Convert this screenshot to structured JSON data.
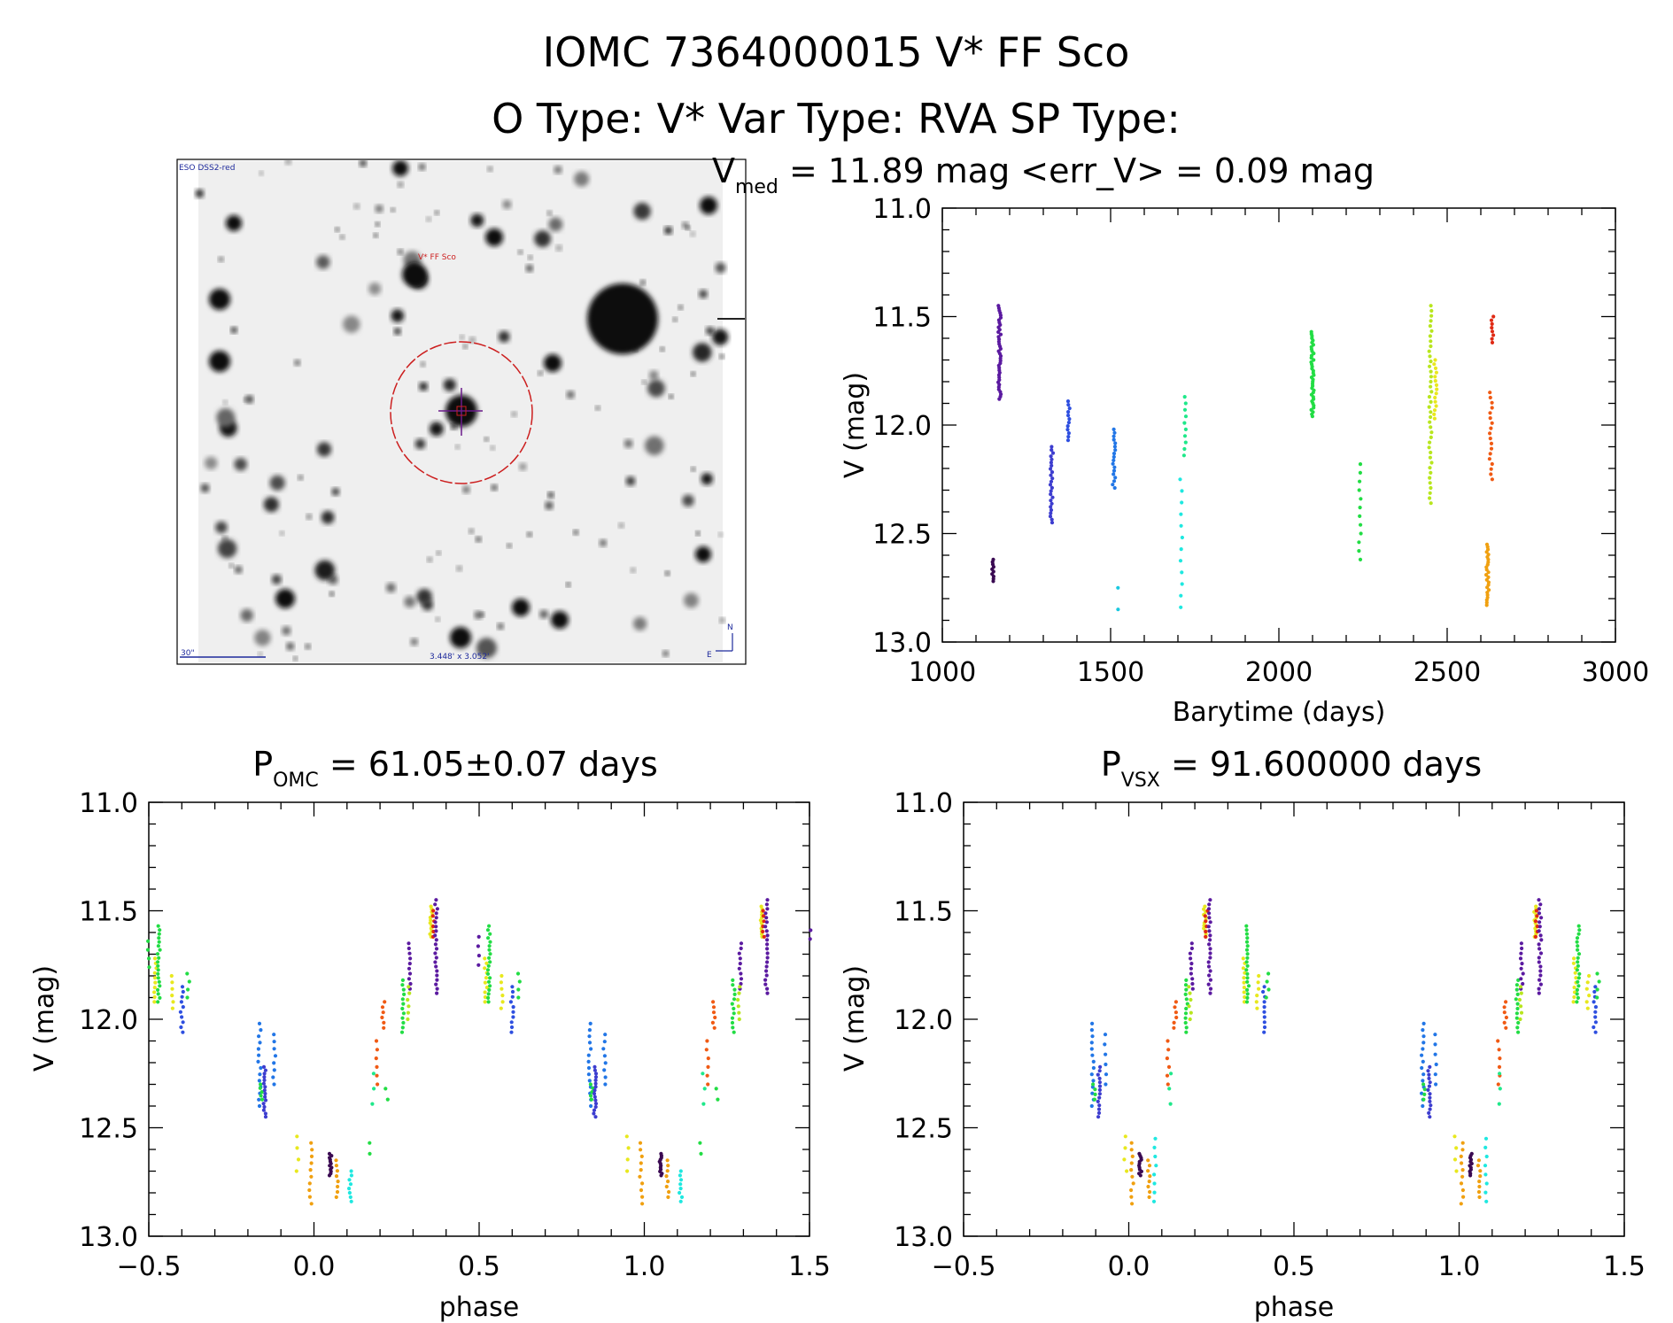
{
  "header": {
    "title": "IOMC 7364000015   V* FF Sco",
    "subtitle": "O Type: V*  Var Type: RVA  SP Type:"
  },
  "image_panel": {
    "corner_label": "ESO DSS2-red",
    "star_label": "V* FF Sco",
    "scale_label": "30\"",
    "fov_label": "3.448' x 3.052'",
    "north_label": "N",
    "east_label": "E"
  },
  "colors": {
    "c1150": "#3a0a52",
    "c1170": "#5b1aa0",
    "c1325": "#3d3dcf",
    "c1375": "#2e4fe0",
    "c1510": "#2276e6",
    "c1520": "#19c8e0",
    "c1710": "#1fe8e0",
    "c1720": "#1fe88a",
    "c2100": "#22dd44",
    "c2240": "#22dd44",
    "c2450": "#b8e61e",
    "c2465": "#e8e81e",
    "c2620a": "#f0a010",
    "c2620b": "#f05a14",
    "c2635": "#e02a14",
    "mag_circle": "#cc1e1e",
    "crosshair": "#6a1a8a",
    "axis": "#000000"
  },
  "chart_data": [
    {
      "type": "scatter",
      "name": "lightcurve",
      "title": "V_med = 11.89 mag <err_V> = 0.09 mag",
      "title_main": "V",
      "title_sub": "med",
      "title_rest": " = 11.89 mag <err_V> = 0.09 mag",
      "xlabel": "Barytime (days)",
      "ylabel": "V (mag)",
      "xlim": [
        1000,
        3000
      ],
      "ylim": [
        13.0,
        11.0
      ],
      "xticks": [
        "1000",
        "1500",
        "2000",
        "2500",
        "3000"
      ],
      "yticks": [
        "11.0",
        "11.5",
        "12.0",
        "12.5",
        "13.0"
      ],
      "groups": [
        {
          "x": 1150,
          "y_min": 12.62,
          "y_max": 12.72,
          "n": 10,
          "color": "c1150"
        },
        {
          "x": 1170,
          "y_min": 11.45,
          "y_max": 11.88,
          "n": 40,
          "color": "c1170"
        },
        {
          "x": 1325,
          "y_min": 12.1,
          "y_max": 12.45,
          "n": 25,
          "color": "c1325"
        },
        {
          "x": 1375,
          "y_min": 11.89,
          "y_max": 12.07,
          "n": 12,
          "color": "c1375"
        },
        {
          "x": 1510,
          "y_min": 12.02,
          "y_max": 12.29,
          "n": 18,
          "color": "c1510"
        },
        {
          "x": 1520,
          "y_min": 12.75,
          "y_max": 12.85,
          "n": 2,
          "color": "c1520"
        },
        {
          "x": 1710,
          "y_min": 12.25,
          "y_max": 12.84,
          "n": 12,
          "color": "c1710"
        },
        {
          "x": 1720,
          "y_min": 11.87,
          "y_max": 12.14,
          "n": 10,
          "color": "c1720"
        },
        {
          "x": 2100,
          "y_min": 11.57,
          "y_max": 11.96,
          "n": 40,
          "color": "c2100"
        },
        {
          "x": 2240,
          "y_min": 12.18,
          "y_max": 12.62,
          "n": 12,
          "color": "c2240"
        },
        {
          "x": 2450,
          "y_min": 11.45,
          "y_max": 12.36,
          "n": 40,
          "color": "c2450"
        },
        {
          "x": 2465,
          "y_min": 11.7,
          "y_max": 11.97,
          "n": 15,
          "color": "c2465"
        },
        {
          "x": 2620,
          "y_min": 12.55,
          "y_max": 12.83,
          "n": 25,
          "color": "c2620a"
        },
        {
          "x": 2630,
          "y_min": 11.85,
          "y_max": 12.25,
          "n": 18,
          "color": "c2620b"
        },
        {
          "x": 2635,
          "y_min": 11.5,
          "y_max": 11.62,
          "n": 8,
          "color": "c2635"
        }
      ]
    },
    {
      "type": "scatter",
      "name": "phase-omc",
      "title": "P_OMC = 61.05±0.07 days",
      "title_main": "P",
      "title_sub": "OMC",
      "title_rest": " = 61.05±0.07 days",
      "xlabel": "phase",
      "ylabel": "V (mag)",
      "xlim": [
        -0.5,
        1.5
      ],
      "ylim": [
        13.0,
        11.0
      ],
      "xticks": [
        "−0.5",
        "0.0",
        "0.5",
        "1.0",
        "1.5"
      ],
      "yticks": [
        "11.0",
        "11.5",
        "12.0",
        "12.5",
        "13.0"
      ],
      "groups": [
        {
          "x": -0.5,
          "y_min": 11.64,
          "y_max": 11.76,
          "n": 4,
          "color": "c2100"
        },
        {
          "x": -0.48,
          "y_min": 11.72,
          "y_max": 11.92,
          "n": 10,
          "color": "c2465"
        },
        {
          "x": -0.47,
          "y_min": 11.57,
          "y_max": 11.92,
          "n": 20,
          "color": "c2100"
        },
        {
          "x": -0.43,
          "y_min": 11.8,
          "y_max": 11.95,
          "n": 6,
          "color": "c2465"
        },
        {
          "x": -0.4,
          "y_min": 11.85,
          "y_max": 12.06,
          "n": 10,
          "color": "c1375"
        },
        {
          "x": -0.38,
          "y_min": 11.79,
          "y_max": 11.9,
          "n": 4,
          "color": "c2100"
        },
        {
          "x": -0.165,
          "y_min": 12.02,
          "y_max": 12.4,
          "n": 14,
          "color": "c1510"
        },
        {
          "x": -0.16,
          "y_min": 12.3,
          "y_max": 12.37,
          "n": 5,
          "color": "c2240"
        },
        {
          "x": -0.15,
          "y_min": 12.22,
          "y_max": 12.45,
          "n": 16,
          "color": "c1325"
        },
        {
          "x": -0.12,
          "y_min": 12.07,
          "y_max": 12.3,
          "n": 8,
          "color": "c1510"
        },
        {
          "x": -0.05,
          "y_min": 12.54,
          "y_max": 12.7,
          "n": 4,
          "color": "c2465"
        },
        {
          "x": -0.01,
          "y_min": 12.57,
          "y_max": 12.85,
          "n": 10,
          "color": "c2620a"
        },
        {
          "x": 0.05,
          "y_min": 12.62,
          "y_max": 12.72,
          "n": 12,
          "color": "c1150"
        },
        {
          "x": 0.07,
          "y_min": 12.65,
          "y_max": 12.82,
          "n": 8,
          "color": "c2620a"
        },
        {
          "x": 0.11,
          "y_min": 12.7,
          "y_max": 12.84,
          "n": 8,
          "color": "c1710"
        },
        {
          "x": 0.17,
          "y_min": 12.57,
          "y_max": 12.62,
          "n": 2,
          "color": "c2240"
        },
        {
          "x": 0.19,
          "y_min": 12.1,
          "y_max": 12.3,
          "n": 6,
          "color": "c2620b"
        },
        {
          "x": 0.18,
          "y_min": 12.25,
          "y_max": 12.39,
          "n": 3,
          "color": "c1720"
        },
        {
          "x": 0.21,
          "y_min": 11.92,
          "y_max": 12.04,
          "n": 6,
          "color": "c2620b"
        },
        {
          "x": 0.22,
          "y_min": 12.32,
          "y_max": 12.37,
          "n": 2,
          "color": "c2240"
        },
        {
          "x": 0.27,
          "y_min": 11.82,
          "y_max": 12.06,
          "n": 12,
          "color": "c2100"
        },
        {
          "x": 0.29,
          "y_min": 11.65,
          "y_max": 11.86,
          "n": 10,
          "color": "c1170"
        },
        {
          "x": 0.285,
          "y_min": 11.85,
          "y_max": 12.0,
          "n": 6,
          "color": "c2450"
        },
        {
          "x": 0.355,
          "y_min": 11.48,
          "y_max": 11.62,
          "n": 12,
          "color": "c2465"
        },
        {
          "x": 0.36,
          "y_min": 11.5,
          "y_max": 11.62,
          "n": 6,
          "color": "c2635"
        },
        {
          "x": 0.37,
          "y_min": 11.45,
          "y_max": 11.88,
          "n": 22,
          "color": "c1170"
        },
        {
          "x": 0.5,
          "y_min": 11.62,
          "y_max": 11.75,
          "n": 4,
          "color": "c1170"
        },
        {
          "x": 0.52,
          "y_min": 11.72,
          "y_max": 11.92,
          "n": 10,
          "color": "c2465"
        },
        {
          "x": 0.53,
          "y_min": 11.57,
          "y_max": 11.92,
          "n": 20,
          "color": "c2100"
        },
        {
          "x": 0.57,
          "y_min": 11.8,
          "y_max": 11.95,
          "n": 6,
          "color": "c2465"
        },
        {
          "x": 0.6,
          "y_min": 11.85,
          "y_max": 12.06,
          "n": 10,
          "color": "c1375"
        },
        {
          "x": 0.62,
          "y_min": 11.79,
          "y_max": 11.9,
          "n": 4,
          "color": "c2100"
        },
        {
          "x": 0.835,
          "y_min": 12.02,
          "y_max": 12.4,
          "n": 14,
          "color": "c1510"
        },
        {
          "x": 0.84,
          "y_min": 12.3,
          "y_max": 12.37,
          "n": 5,
          "color": "c2240"
        },
        {
          "x": 0.85,
          "y_min": 12.22,
          "y_max": 12.45,
          "n": 16,
          "color": "c1325"
        },
        {
          "x": 0.88,
          "y_min": 12.07,
          "y_max": 12.3,
          "n": 8,
          "color": "c1510"
        },
        {
          "x": 0.95,
          "y_min": 12.54,
          "y_max": 12.7,
          "n": 4,
          "color": "c2465"
        },
        {
          "x": 0.99,
          "y_min": 12.57,
          "y_max": 12.85,
          "n": 10,
          "color": "c2620a"
        },
        {
          "x": 1.05,
          "y_min": 12.62,
          "y_max": 12.72,
          "n": 12,
          "color": "c1150"
        },
        {
          "x": 1.07,
          "y_min": 12.65,
          "y_max": 12.82,
          "n": 8,
          "color": "c2620a"
        },
        {
          "x": 1.11,
          "y_min": 12.7,
          "y_max": 12.84,
          "n": 8,
          "color": "c1710"
        },
        {
          "x": 1.17,
          "y_min": 12.57,
          "y_max": 12.62,
          "n": 2,
          "color": "c2240"
        },
        {
          "x": 1.19,
          "y_min": 12.1,
          "y_max": 12.3,
          "n": 6,
          "color": "c2620b"
        },
        {
          "x": 1.18,
          "y_min": 12.25,
          "y_max": 12.39,
          "n": 3,
          "color": "c1720"
        },
        {
          "x": 1.21,
          "y_min": 11.92,
          "y_max": 12.04,
          "n": 6,
          "color": "c2620b"
        },
        {
          "x": 1.22,
          "y_min": 12.32,
          "y_max": 12.37,
          "n": 2,
          "color": "c2240"
        },
        {
          "x": 1.27,
          "y_min": 11.82,
          "y_max": 12.06,
          "n": 12,
          "color": "c2100"
        },
        {
          "x": 1.29,
          "y_min": 11.65,
          "y_max": 11.86,
          "n": 10,
          "color": "c1170"
        },
        {
          "x": 1.285,
          "y_min": 11.85,
          "y_max": 12.0,
          "n": 6,
          "color": "c2450"
        },
        {
          "x": 1.355,
          "y_min": 11.48,
          "y_max": 11.62,
          "n": 12,
          "color": "c2465"
        },
        {
          "x": 1.36,
          "y_min": 11.5,
          "y_max": 11.62,
          "n": 6,
          "color": "c2635"
        },
        {
          "x": 1.37,
          "y_min": 11.45,
          "y_max": 11.88,
          "n": 22,
          "color": "c1170"
        },
        {
          "x": 1.5,
          "y_min": 11.59,
          "y_max": 11.63,
          "n": 2,
          "color": "c1170"
        }
      ]
    },
    {
      "type": "scatter",
      "name": "phase-vsx",
      "title": "P_VSX = 91.600000 days",
      "title_main": "P",
      "title_sub": "VSX",
      "title_rest": " = 91.600000 days",
      "xlabel": "phase",
      "ylabel": "V (mag)",
      "xlim": [
        -0.5,
        1.5
      ],
      "ylim": [
        13.0,
        11.0
      ],
      "xticks": [
        "−0.5",
        "0.0",
        "0.5",
        "1.0",
        "1.5"
      ],
      "yticks": [
        "11.0",
        "11.5",
        "12.0",
        "12.5",
        "13.0"
      ],
      "groups": [
        {
          "x": -0.11,
          "y_min": 12.02,
          "y_max": 12.4,
          "n": 14,
          "color": "c1510"
        },
        {
          "x": -0.105,
          "y_min": 12.3,
          "y_max": 12.37,
          "n": 4,
          "color": "c2240"
        },
        {
          "x": -0.09,
          "y_min": 12.22,
          "y_max": 12.45,
          "n": 14,
          "color": "c1325"
        },
        {
          "x": -0.07,
          "y_min": 12.07,
          "y_max": 12.3,
          "n": 6,
          "color": "c1510"
        },
        {
          "x": -0.01,
          "y_min": 12.54,
          "y_max": 12.7,
          "n": 4,
          "color": "c2465"
        },
        {
          "x": 0.01,
          "y_min": 12.57,
          "y_max": 12.85,
          "n": 10,
          "color": "c2620a"
        },
        {
          "x": 0.035,
          "y_min": 12.62,
          "y_max": 12.72,
          "n": 12,
          "color": "c1150"
        },
        {
          "x": 0.06,
          "y_min": 12.65,
          "y_max": 12.82,
          "n": 8,
          "color": "c2620a"
        },
        {
          "x": 0.08,
          "y_min": 12.55,
          "y_max": 12.84,
          "n": 8,
          "color": "c1710"
        },
        {
          "x": 0.12,
          "y_min": 12.1,
          "y_max": 12.3,
          "n": 6,
          "color": "c2620b"
        },
        {
          "x": 0.125,
          "y_min": 12.25,
          "y_max": 12.39,
          "n": 3,
          "color": "c1720"
        },
        {
          "x": 0.14,
          "y_min": 11.92,
          "y_max": 12.04,
          "n": 6,
          "color": "c2620b"
        },
        {
          "x": 0.175,
          "y_min": 11.82,
          "y_max": 12.06,
          "n": 12,
          "color": "c2100"
        },
        {
          "x": 0.19,
          "y_min": 11.65,
          "y_max": 11.86,
          "n": 10,
          "color": "c1170"
        },
        {
          "x": 0.185,
          "y_min": 11.85,
          "y_max": 12.0,
          "n": 6,
          "color": "c2450"
        },
        {
          "x": 0.23,
          "y_min": 11.48,
          "y_max": 11.62,
          "n": 12,
          "color": "c2465"
        },
        {
          "x": 0.235,
          "y_min": 11.5,
          "y_max": 11.62,
          "n": 6,
          "color": "c2635"
        },
        {
          "x": 0.245,
          "y_min": 11.45,
          "y_max": 11.88,
          "n": 22,
          "color": "c1170"
        },
        {
          "x": 0.35,
          "y_min": 11.72,
          "y_max": 11.92,
          "n": 10,
          "color": "c2465"
        },
        {
          "x": 0.36,
          "y_min": 11.57,
          "y_max": 11.92,
          "n": 20,
          "color": "c2100"
        },
        {
          "x": 0.39,
          "y_min": 11.8,
          "y_max": 11.95,
          "n": 6,
          "color": "c2465"
        },
        {
          "x": 0.41,
          "y_min": 11.85,
          "y_max": 12.06,
          "n": 10,
          "color": "c1375"
        },
        {
          "x": 0.42,
          "y_min": 11.79,
          "y_max": 11.9,
          "n": 4,
          "color": "c2100"
        },
        {
          "x": 0.89,
          "y_min": 12.02,
          "y_max": 12.4,
          "n": 14,
          "color": "c1510"
        },
        {
          "x": 0.895,
          "y_min": 12.3,
          "y_max": 12.37,
          "n": 4,
          "color": "c2240"
        },
        {
          "x": 0.91,
          "y_min": 12.22,
          "y_max": 12.45,
          "n": 14,
          "color": "c1325"
        },
        {
          "x": 0.93,
          "y_min": 12.07,
          "y_max": 12.3,
          "n": 6,
          "color": "c1510"
        },
        {
          "x": 0.99,
          "y_min": 12.54,
          "y_max": 12.7,
          "n": 4,
          "color": "c2465"
        },
        {
          "x": 1.01,
          "y_min": 12.57,
          "y_max": 12.85,
          "n": 10,
          "color": "c2620a"
        },
        {
          "x": 1.035,
          "y_min": 12.62,
          "y_max": 12.72,
          "n": 12,
          "color": "c1150"
        },
        {
          "x": 1.06,
          "y_min": 12.65,
          "y_max": 12.82,
          "n": 8,
          "color": "c2620a"
        },
        {
          "x": 1.08,
          "y_min": 12.55,
          "y_max": 12.84,
          "n": 8,
          "color": "c1710"
        },
        {
          "x": 1.12,
          "y_min": 12.1,
          "y_max": 12.3,
          "n": 6,
          "color": "c2620b"
        },
        {
          "x": 1.125,
          "y_min": 12.25,
          "y_max": 12.39,
          "n": 3,
          "color": "c1720"
        },
        {
          "x": 1.14,
          "y_min": 11.92,
          "y_max": 12.04,
          "n": 6,
          "color": "c2620b"
        },
        {
          "x": 1.175,
          "y_min": 11.82,
          "y_max": 12.06,
          "n": 12,
          "color": "c2100"
        },
        {
          "x": 1.19,
          "y_min": 11.65,
          "y_max": 11.86,
          "n": 10,
          "color": "c1170"
        },
        {
          "x": 1.185,
          "y_min": 11.85,
          "y_max": 12.0,
          "n": 6,
          "color": "c2450"
        },
        {
          "x": 1.23,
          "y_min": 11.48,
          "y_max": 11.62,
          "n": 12,
          "color": "c2465"
        },
        {
          "x": 1.235,
          "y_min": 11.5,
          "y_max": 11.62,
          "n": 6,
          "color": "c2635"
        },
        {
          "x": 1.245,
          "y_min": 11.45,
          "y_max": 11.88,
          "n": 22,
          "color": "c1170"
        },
        {
          "x": 1.35,
          "y_min": 11.72,
          "y_max": 11.92,
          "n": 10,
          "color": "c2465"
        },
        {
          "x": 1.36,
          "y_min": 11.57,
          "y_max": 11.92,
          "n": 20,
          "color": "c2100"
        },
        {
          "x": 1.39,
          "y_min": 11.8,
          "y_max": 11.95,
          "n": 6,
          "color": "c2465"
        },
        {
          "x": 1.41,
          "y_min": 11.85,
          "y_max": 12.06,
          "n": 10,
          "color": "c1375"
        },
        {
          "x": 1.42,
          "y_min": 11.79,
          "y_max": 11.9,
          "n": 4,
          "color": "c2100"
        }
      ]
    }
  ]
}
